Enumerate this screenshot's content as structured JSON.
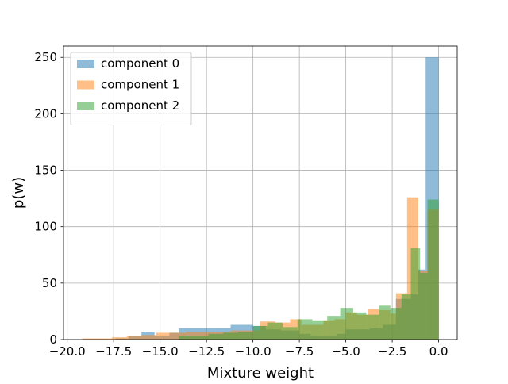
{
  "chart_data": {
    "type": "bar",
    "subtype": "histogram",
    "xlabel": "Mixture weight",
    "ylabel": "p(w)",
    "xlim": [
      -20.2,
      1.0
    ],
    "ylim": [
      0,
      260
    ],
    "xticks": [
      -20.0,
      -17.5,
      -15.0,
      -12.5,
      -10.0,
      -7.5,
      -5.0,
      -2.5,
      0.0
    ],
    "xtick_labels": [
      "−20.0",
      "−17.5",
      "−15.0",
      "−12.5",
      "−10.0",
      "−7.5",
      "−5.0",
      "−2.5",
      "0.0"
    ],
    "yticks": [
      0,
      50,
      100,
      150,
      200,
      250
    ],
    "ytick_labels": [
      "0",
      "50",
      "100",
      "150",
      "200",
      "250"
    ],
    "grid": true,
    "legend": "upper-left",
    "series": [
      {
        "name": "component 0",
        "color": "#1f77b4",
        "alpha": 0.5,
        "bins": [
          [
            -17.4,
            -16.7,
            1
          ],
          [
            -16.7,
            -16.0,
            3
          ],
          [
            -16.0,
            -15.3,
            7
          ],
          [
            -15.3,
            -14.5,
            3
          ],
          [
            -14.5,
            -14.0,
            6
          ],
          [
            -14.0,
            -12.0,
            10
          ],
          [
            -12.0,
            -11.2,
            10
          ],
          [
            -11.2,
            -10.0,
            13
          ],
          [
            -10.0,
            -9.3,
            12
          ],
          [
            -9.3,
            -8.5,
            9
          ],
          [
            -8.5,
            -7.5,
            8
          ],
          [
            -7.5,
            -6.9,
            5
          ],
          [
            -6.9,
            -5.5,
            3
          ],
          [
            -5.5,
            -5.0,
            5
          ],
          [
            -5.0,
            -3.7,
            9
          ],
          [
            -3.7,
            -3.0,
            10
          ],
          [
            -3.0,
            -2.3,
            13
          ],
          [
            -2.3,
            -1.5,
            36
          ],
          [
            -1.5,
            -1.1,
            40
          ],
          [
            -1.1,
            -0.7,
            62
          ],
          [
            -0.7,
            0.0,
            250
          ]
        ]
      },
      {
        "name": "component 1",
        "color": "#ff7f0e",
        "alpha": 0.5,
        "bins": [
          [
            -19.2,
            -18.4,
            1
          ],
          [
            -18.4,
            -17.6,
            1
          ],
          [
            -17.6,
            -16.8,
            2
          ],
          [
            -16.8,
            -16.0,
            3
          ],
          [
            -16.0,
            -15.2,
            4
          ],
          [
            -15.2,
            -14.4,
            6
          ],
          [
            -14.4,
            -13.6,
            6
          ],
          [
            -13.6,
            -12.8,
            7
          ],
          [
            -12.8,
            -12.0,
            7
          ],
          [
            -12.0,
            -11.2,
            7
          ],
          [
            -11.2,
            -10.4,
            8
          ],
          [
            -10.4,
            -9.6,
            8
          ],
          [
            -9.6,
            -8.8,
            16
          ],
          [
            -8.8,
            -8.0,
            15
          ],
          [
            -8.0,
            -7.4,
            18
          ],
          [
            -7.4,
            -6.8,
            13
          ],
          [
            -6.8,
            -6.2,
            13
          ],
          [
            -6.2,
            -5.6,
            17
          ],
          [
            -5.6,
            -5.0,
            18
          ],
          [
            -5.0,
            -4.4,
            24
          ],
          [
            -4.4,
            -3.8,
            22
          ],
          [
            -3.8,
            -3.2,
            27
          ],
          [
            -3.2,
            -2.6,
            26
          ],
          [
            -2.6,
            -2.3,
            23
          ],
          [
            -2.3,
            -1.7,
            41
          ],
          [
            -1.7,
            -1.1,
            126
          ],
          [
            -1.1,
            -0.6,
            61
          ],
          [
            -0.6,
            0.0,
            115
          ]
        ]
      },
      {
        "name": "component 2",
        "color": "#2ca02c",
        "alpha": 0.5,
        "bins": [
          [
            -14.0,
            -12.4,
            3
          ],
          [
            -12.4,
            -11.6,
            5
          ],
          [
            -11.6,
            -10.8,
            6
          ],
          [
            -10.8,
            -10.0,
            7
          ],
          [
            -10.0,
            -9.2,
            12
          ],
          [
            -9.2,
            -8.4,
            15
          ],
          [
            -8.4,
            -7.6,
            11
          ],
          [
            -7.6,
            -6.8,
            18
          ],
          [
            -6.8,
            -6.0,
            17
          ],
          [
            -6.0,
            -5.3,
            21
          ],
          [
            -5.3,
            -4.6,
            28
          ],
          [
            -4.6,
            -3.9,
            24
          ],
          [
            -3.9,
            -3.2,
            22
          ],
          [
            -3.2,
            -2.6,
            30
          ],
          [
            -2.6,
            -2.0,
            28
          ],
          [
            -2.0,
            -1.5,
            40
          ],
          [
            -1.5,
            -1.0,
            81
          ],
          [
            -1.0,
            -0.6,
            59
          ],
          [
            -0.6,
            0.0,
            124
          ]
        ]
      }
    ]
  }
}
